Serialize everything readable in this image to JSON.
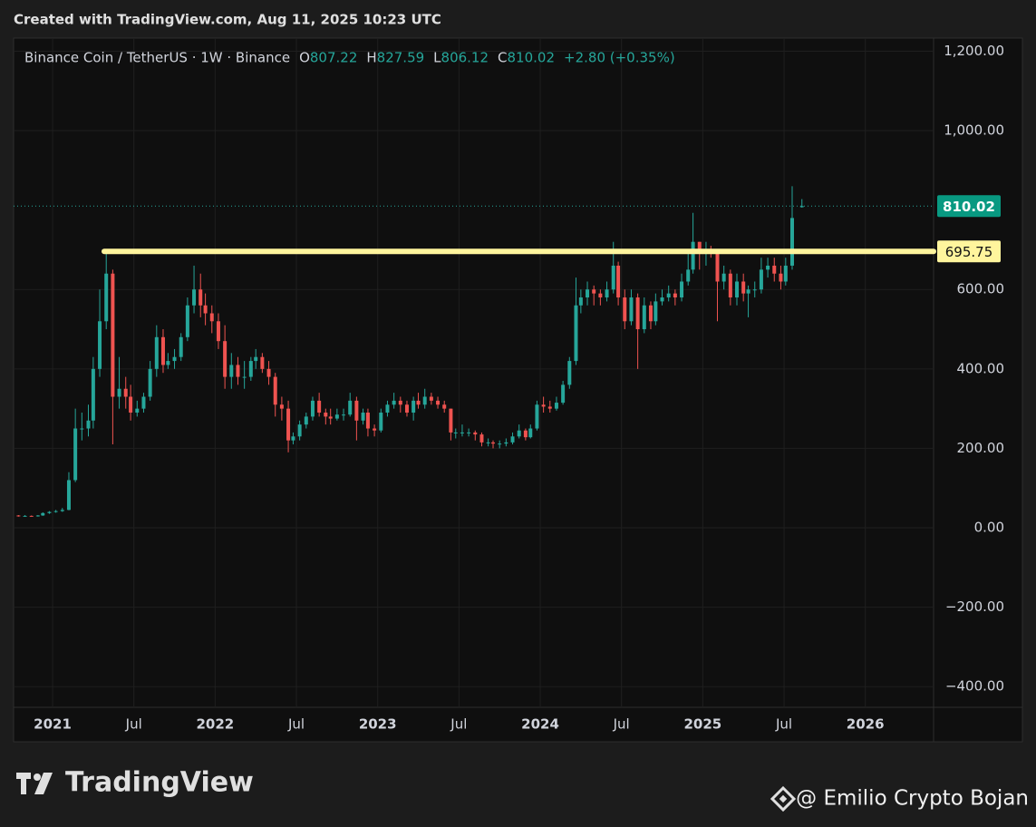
{
  "header": "Created with TradingView.com, Aug 11, 2025 10:23 UTC",
  "chart_data": {
    "type": "candlestick",
    "symbol": "Binance Coin / TetherUS · 1W · Binance",
    "ohlc_letters": [
      "O",
      "H",
      "L",
      "C"
    ],
    "change_label": "+2.80 (+0.35%)",
    "up_color": "#26a69a",
    "down_color": "#ef5350",
    "grid": true,
    "xlim": [
      2020.76,
      2026.42
    ],
    "xticks": [
      {
        "value": 2021,
        "label": "2021"
      },
      {
        "value": 2021.5,
        "label": "Jul"
      },
      {
        "value": 2022,
        "label": "2022"
      },
      {
        "value": 2022.5,
        "label": "Jul"
      },
      {
        "value": 2023,
        "label": "2023"
      },
      {
        "value": 2023.5,
        "label": "Jul"
      },
      {
        "value": 2024,
        "label": "2024"
      },
      {
        "value": 2024.5,
        "label": "Jul"
      },
      {
        "value": 2025,
        "label": "2025"
      },
      {
        "value": 2025.5,
        "label": "Jul"
      },
      {
        "value": 2026,
        "label": "2026"
      }
    ],
    "ylim": [
      -452,
      1233
    ],
    "yticks": [
      {
        "value": 1200,
        "label": "1,200.00"
      },
      {
        "value": 1000,
        "label": "1,000.00"
      },
      {
        "value": 600,
        "label": "600.00"
      },
      {
        "value": 400,
        "label": "400.00"
      },
      {
        "value": 200,
        "label": "200.00"
      },
      {
        "value": 0,
        "label": "0.00"
      },
      {
        "value": -200,
        "label": "−200.00"
      },
      {
        "value": -400,
        "label": "−400.00"
      }
    ],
    "hline": {
      "value": 695.75,
      "color": "#fff59d"
    },
    "x": [
      2020.79,
      2020.83,
      2020.87,
      2020.91,
      2020.94,
      2020.98,
      2021.02,
      2021.06,
      2021.1,
      2021.14,
      2021.18,
      2021.22,
      2021.25,
      2021.29,
      2021.33,
      2021.37,
      2021.41,
      2021.45,
      2021.48,
      2021.52,
      2021.56,
      2021.6,
      2021.64,
      2021.68,
      2021.71,
      2021.75,
      2021.79,
      2021.83,
      2021.87,
      2021.91,
      2021.94,
      2021.98,
      2022.02,
      2022.06,
      2022.1,
      2022.14,
      2022.18,
      2022.22,
      2022.25,
      2022.29,
      2022.33,
      2022.37,
      2022.41,
      2022.45,
      2022.48,
      2022.52,
      2022.56,
      2022.6,
      2022.64,
      2022.68,
      2022.71,
      2022.75,
      2022.79,
      2022.83,
      2022.87,
      2022.91,
      2022.94,
      2022.98,
      2023.02,
      2023.06,
      2023.1,
      2023.14,
      2023.18,
      2023.22,
      2023.25,
      2023.29,
      2023.33,
      2023.37,
      2023.41,
      2023.45,
      2023.48,
      2023.52,
      2023.56,
      2023.6,
      2023.64,
      2023.68,
      2023.71,
      2023.75,
      2023.79,
      2023.83,
      2023.87,
      2023.91,
      2023.94,
      2023.98,
      2024.02,
      2024.06,
      2024.1,
      2024.14,
      2024.18,
      2024.22,
      2024.25,
      2024.29,
      2024.33,
      2024.37,
      2024.41,
      2024.45,
      2024.48,
      2024.52,
      2024.56,
      2024.6,
      2024.64,
      2024.68,
      2024.71,
      2024.75,
      2024.79,
      2024.83,
      2024.87,
      2024.91,
      2024.94,
      2024.98,
      2025.02,
      2025.05,
      2025.09,
      2025.13,
      2025.17,
      2025.21,
      2025.25,
      2025.28,
      2025.32,
      2025.36,
      2025.4,
      2025.44,
      2025.48,
      2025.51,
      2025.55,
      2025.61
    ],
    "open": [
      31,
      30,
      30,
      29,
      31,
      37,
      40,
      42,
      45,
      120,
      250,
      250,
      270,
      400,
      520,
      640,
      330,
      350,
      330,
      290,
      300,
      330,
      400,
      480,
      410,
      420,
      430,
      480,
      560,
      600,
      560,
      540,
      520,
      470,
      380,
      410,
      380,
      380,
      420,
      430,
      400,
      380,
      310,
      300,
      220,
      230,
      260,
      280,
      320,
      290,
      280,
      275,
      285,
      285,
      320,
      270,
      290,
      250,
      245,
      290,
      310,
      320,
      310,
      290,
      320,
      310,
      330,
      320,
      310,
      300,
      240,
      240,
      240,
      240,
      235,
      215,
      215,
      212,
      212,
      215,
      230,
      245,
      228,
      250,
      310,
      305,
      300,
      315,
      360,
      420,
      560,
      580,
      600,
      590,
      580,
      600,
      660,
      580,
      520,
      580,
      500,
      560,
      520,
      570,
      580,
      590,
      580,
      620,
      650,
      720,
      690,
      700,
      690,
      620,
      640,
      580,
      620,
      590,
      600,
      600,
      650,
      660,
      640,
      620,
      660,
      807.22
    ],
    "high": [
      32,
      32,
      31,
      32,
      39,
      42,
      45,
      50,
      140,
      300,
      290,
      310,
      430,
      600,
      690,
      650,
      430,
      380,
      360,
      320,
      340,
      420,
      510,
      500,
      440,
      450,
      490,
      580,
      660,
      640,
      590,
      560,
      540,
      510,
      440,
      430,
      420,
      430,
      450,
      440,
      420,
      390,
      330,
      320,
      240,
      270,
      290,
      330,
      340,
      300,
      300,
      300,
      300,
      340,
      330,
      300,
      300,
      260,
      300,
      320,
      340,
      330,
      320,
      330,
      340,
      350,
      340,
      330,
      320,
      300,
      250,
      260,
      250,
      245,
      240,
      225,
      220,
      220,
      225,
      240,
      260,
      250,
      260,
      320,
      330,
      320,
      330,
      370,
      430,
      630,
      600,
      620,
      610,
      600,
      620,
      720,
      670,
      600,
      600,
      590,
      580,
      570,
      590,
      600,
      610,
      600,
      640,
      690,
      793,
      720,
      720,
      710,
      700,
      660,
      650,
      640,
      640,
      610,
      620,
      680,
      680,
      680,
      660,
      680,
      860,
      827.59
    ],
    "low": [
      28,
      28,
      28,
      28,
      30,
      35,
      38,
      40,
      44,
      115,
      220,
      230,
      250,
      380,
      500,
      210,
      300,
      300,
      270,
      280,
      290,
      320,
      380,
      390,
      400,
      400,
      420,
      470,
      540,
      530,
      510,
      490,
      450,
      350,
      350,
      360,
      350,
      370,
      400,
      390,
      360,
      280,
      270,
      190,
      210,
      220,
      250,
      270,
      280,
      260,
      260,
      270,
      270,
      280,
      220,
      260,
      230,
      230,
      240,
      280,
      300,
      290,
      280,
      270,
      300,
      300,
      310,
      300,
      290,
      220,
      225,
      230,
      230,
      220,
      205,
      205,
      200,
      200,
      205,
      210,
      225,
      220,
      225,
      245,
      290,
      290,
      295,
      310,
      350,
      410,
      540,
      560,
      560,
      560,
      570,
      590,
      560,
      500,
      510,
      400,
      490,
      500,
      510,
      560,
      570,
      560,
      570,
      610,
      640,
      650,
      660,
      680,
      520,
      600,
      560,
      560,
      570,
      530,
      580,
      590,
      630,
      620,
      600,
      610,
      650,
      806.12
    ],
    "close": [
      30,
      30,
      29,
      31,
      37,
      40,
      42,
      45,
      120,
      250,
      250,
      270,
      400,
      520,
      640,
      330,
      350,
      330,
      290,
      300,
      330,
      400,
      480,
      410,
      420,
      430,
      480,
      560,
      600,
      560,
      540,
      520,
      470,
      380,
      410,
      380,
      380,
      420,
      430,
      400,
      380,
      310,
      300,
      220,
      230,
      260,
      280,
      320,
      290,
      280,
      275,
      285,
      285,
      320,
      270,
      290,
      250,
      245,
      290,
      310,
      320,
      310,
      290,
      320,
      310,
      330,
      320,
      310,
      300,
      240,
      240,
      240,
      240,
      235,
      215,
      215,
      212,
      212,
      215,
      230,
      245,
      228,
      250,
      310,
      305,
      300,
      315,
      360,
      420,
      560,
      580,
      600,
      590,
      580,
      600,
      660,
      580,
      520,
      580,
      500,
      560,
      520,
      570,
      580,
      590,
      580,
      620,
      650,
      720,
      690,
      700,
      690,
      620,
      640,
      580,
      620,
      590,
      600,
      600,
      650,
      660,
      640,
      620,
      660,
      780,
      810.02
    ]
  },
  "footer": {
    "brand": "TradingView",
    "credit": "@ Emilio Crypto Bojan"
  }
}
